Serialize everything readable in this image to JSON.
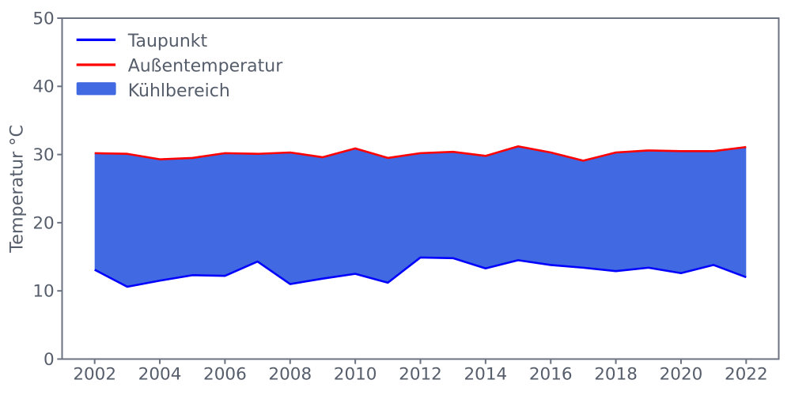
{
  "page": {
    "background": "#ffffff"
  },
  "chart_data": {
    "type": "area",
    "title": "",
    "x": [
      2002,
      2003,
      2004,
      2005,
      2006,
      2007,
      2008,
      2009,
      2010,
      2011,
      2012,
      2013,
      2014,
      2015,
      2016,
      2017,
      2018,
      2019,
      2020,
      2021,
      2022
    ],
    "series": [
      {
        "name": "Taupunkt",
        "color": "#0000ff",
        "values": [
          13.1,
          10.6,
          11.5,
          12.3,
          12.2,
          14.3,
          11.0,
          11.8,
          12.5,
          11.2,
          14.9,
          14.8,
          13.3,
          14.5,
          13.8,
          13.4,
          12.9,
          13.4,
          12.6,
          13.8,
          12.0
        ]
      },
      {
        "name": "Außentemperatur",
        "color": "#ff0000",
        "values": [
          30.2,
          30.1,
          29.3,
          29.5,
          30.2,
          30.1,
          30.3,
          29.6,
          30.9,
          29.5,
          30.2,
          30.4,
          29.8,
          31.2,
          30.3,
          29.1,
          30.3,
          30.6,
          30.5,
          30.5,
          31.1
        ]
      }
    ],
    "fill_between": {
      "name": "Kühlbereich",
      "color": "#4169e1",
      "lower": "Taupunkt",
      "upper": "Außentemperatur"
    },
    "xlabel": "",
    "ylabel": "Temperatur °C",
    "xlim": [
      2001,
      2023
    ],
    "ylim": [
      0,
      50
    ],
    "xticks": [
      "2002",
      "2004",
      "2006",
      "2008",
      "2010",
      "2012",
      "2014",
      "2016",
      "2018",
      "2020",
      "2022"
    ],
    "yticks": [
      "0",
      "10",
      "20",
      "30",
      "40",
      "50"
    ],
    "grid": false,
    "legend": {
      "position": "upper left",
      "items": [
        {
          "label": "Taupunkt",
          "marker": "line",
          "color": "#0000ff"
        },
        {
          "label": "Außentemperatur",
          "marker": "line",
          "color": "#ff0000"
        },
        {
          "label": "Kühlbereich",
          "marker": "patch",
          "color": "#4169e1"
        }
      ]
    },
    "colors": {
      "axis": "#6b7280",
      "text": "#565d6b"
    }
  }
}
